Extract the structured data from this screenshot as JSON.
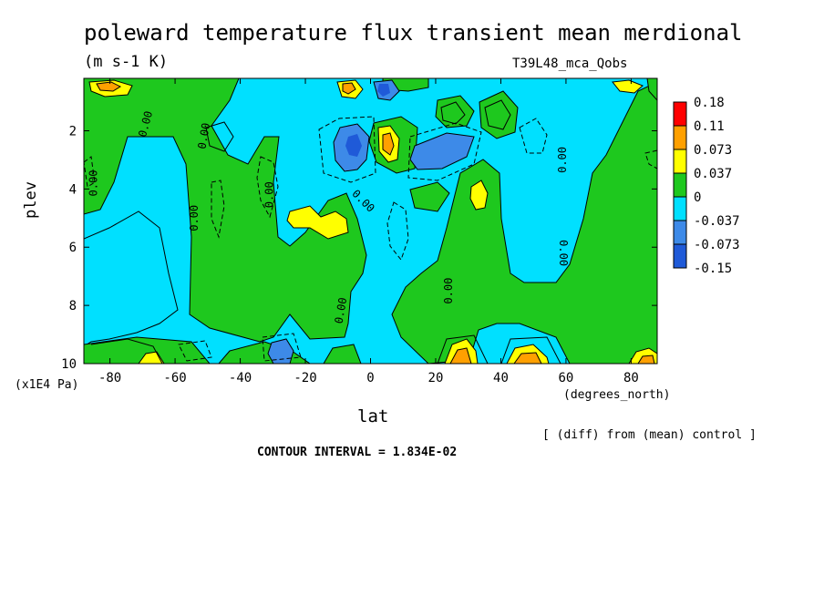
{
  "header": {
    "title": "poleward temperature flux transient mean merdional",
    "units": "(m s-1 K)",
    "run": "T39L48_mca_Qobs"
  },
  "footer": {
    "diff_note": "[ (diff) from (mean) control ]",
    "contour_interval": "CONTOUR INTERVAL = 1.834E-02"
  },
  "colors": {
    "lt_neg3": "#1f5ad8",
    "lt_neg2": "#3d8ae8",
    "lt_neg1": "#00e0ff",
    "lt_pos1": "#1ec81e",
    "lt_pos2": "#ffff00",
    "lt_pos3": "#ffa000",
    "lt_pos4": "#ff0000"
  },
  "chart_data": {
    "type": "heatmap",
    "title": "poleward temperature flux transient mean merdional",
    "xlabel": "lat",
    "ylabel": "plev",
    "x_unit": "(degrees_north)",
    "y_unit": "(x1E4 Pa)",
    "xlim": [
      -88,
      88
    ],
    "ylim": [
      0.2,
      10
    ],
    "y_inverted": true,
    "x_ticks": [
      -80,
      -60,
      -40,
      -20,
      0,
      20,
      40,
      60,
      80
    ],
    "y_ticks": [
      2,
      4,
      6,
      8,
      10
    ],
    "contour_labels": [
      "0.00",
      "0.00",
      "0.00",
      "0.00",
      "0.00",
      "0.00",
      "0.00",
      "0.00",
      "0.00",
      "0.00"
    ],
    "levels": {
      "labels": [
        "0.18",
        "0.11",
        "0.073",
        "0.037",
        "0",
        "-0.037",
        "-0.073",
        "-0.15"
      ],
      "colors": [
        "#ff0000",
        "#ffa000",
        "#ffff00",
        "#1ec81e",
        "#00e0ff",
        "#3d8ae8",
        "#1f5ad8"
      ]
    },
    "features": [
      {
        "lat": -70,
        "plev": 0.4,
        "value": 0.08
      },
      {
        "lat": -16,
        "plev": 4.8,
        "value": 0.06
      },
      {
        "lat": -6,
        "plev": 0.5,
        "value": 0.09
      },
      {
        "lat": -2,
        "plev": 0.4,
        "value": -0.12
      },
      {
        "lat": -8,
        "plev": 2.5,
        "value": -0.09
      },
      {
        "lat": 5,
        "plev": 2.4,
        "value": 0.09
      },
      {
        "lat": 20,
        "plev": 2.6,
        "value": -0.07
      },
      {
        "lat": 32,
        "plev": 4.0,
        "value": 0.05
      },
      {
        "lat": -55,
        "plev": 9.7,
        "value": -0.04
      },
      {
        "lat": -27,
        "plev": 9.7,
        "value": -0.06
      },
      {
        "lat": -70,
        "plev": 9.7,
        "value": 0.05
      },
      {
        "lat": 27,
        "plev": 9.5,
        "value": 0.09
      },
      {
        "lat": 48,
        "plev": 9.7,
        "value": 0.08
      },
      {
        "lat": 84,
        "plev": 9.7,
        "value": 0.06
      }
    ]
  }
}
